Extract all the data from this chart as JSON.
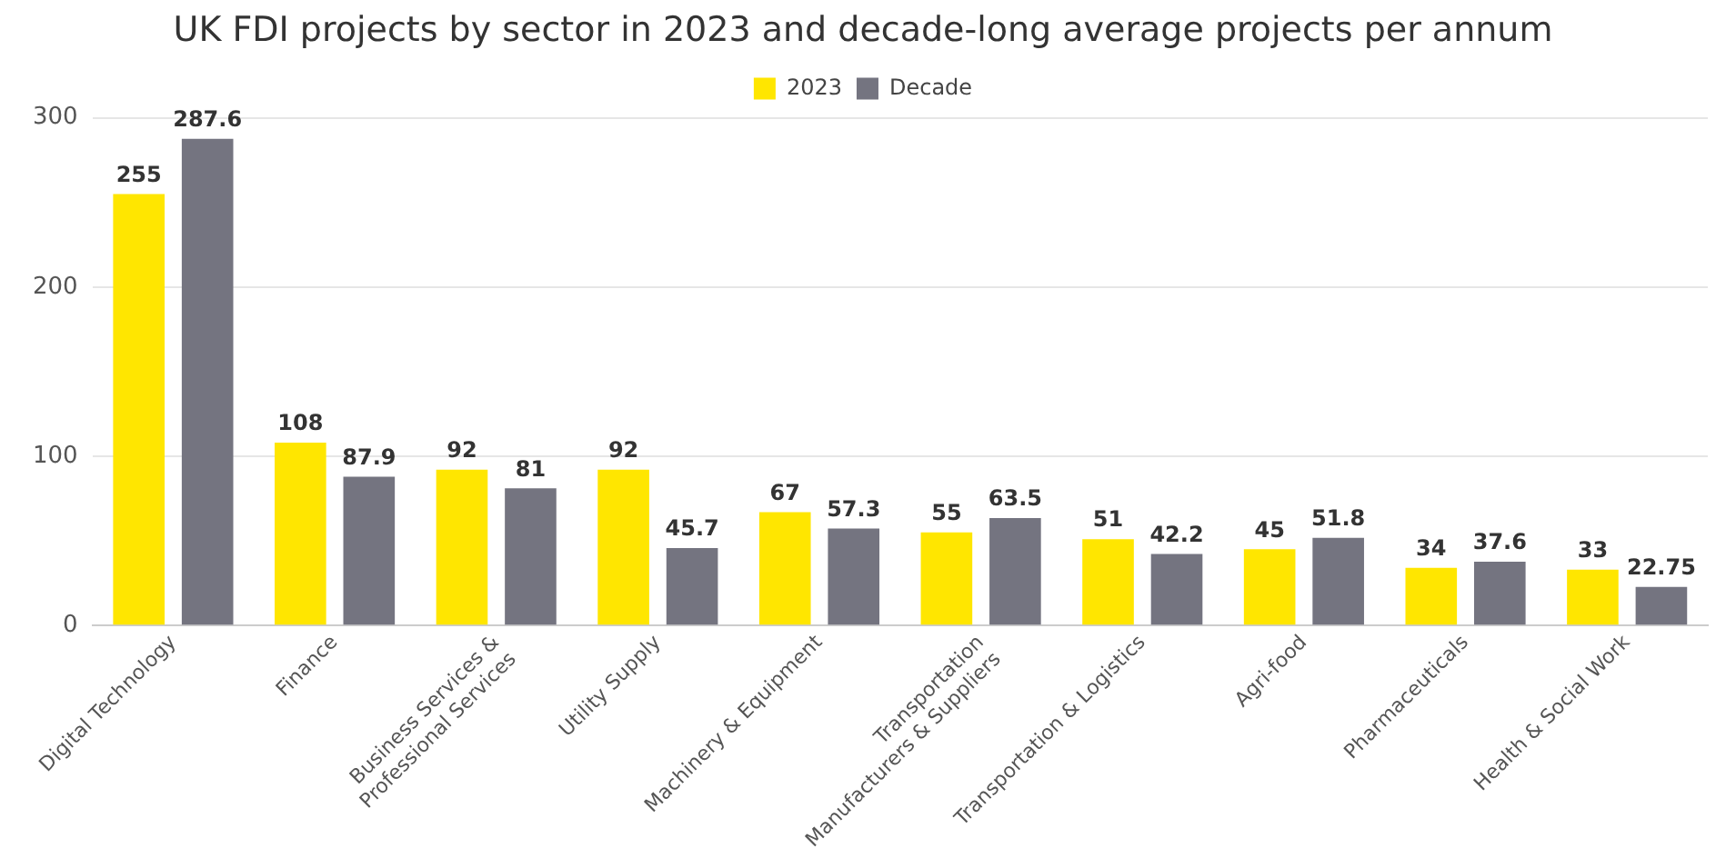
{
  "chart_data": {
    "type": "bar",
    "title": "UK FDI projects by sector in 2023 and decade-long average projects per annum",
    "categories": [
      "Digital Technology",
      "Finance",
      "Business Services & Professional Services",
      "Utility Supply",
      "Machinery & Equipment",
      "Transportation Manufacturers & Suppliers",
      "Transportation & Logistics",
      "Agri-food",
      "Pharmaceuticals",
      "Health & Social Work"
    ],
    "series": [
      {
        "name": "2023",
        "color": "#ffe600",
        "values": [
          255,
          108,
          92,
          92,
          67,
          55,
          51,
          45,
          34,
          33
        ]
      },
      {
        "name": "Decade",
        "color": "#747480",
        "values": [
          287.6,
          87.9,
          81,
          45.7,
          57.3,
          63.5,
          42.2,
          51.8,
          37.6,
          22.75
        ]
      }
    ],
    "ylim": [
      0,
      300
    ],
    "yticks": [
      0,
      100,
      200,
      300
    ],
    "grid": "y",
    "legend": "top",
    "data_labels": true
  }
}
